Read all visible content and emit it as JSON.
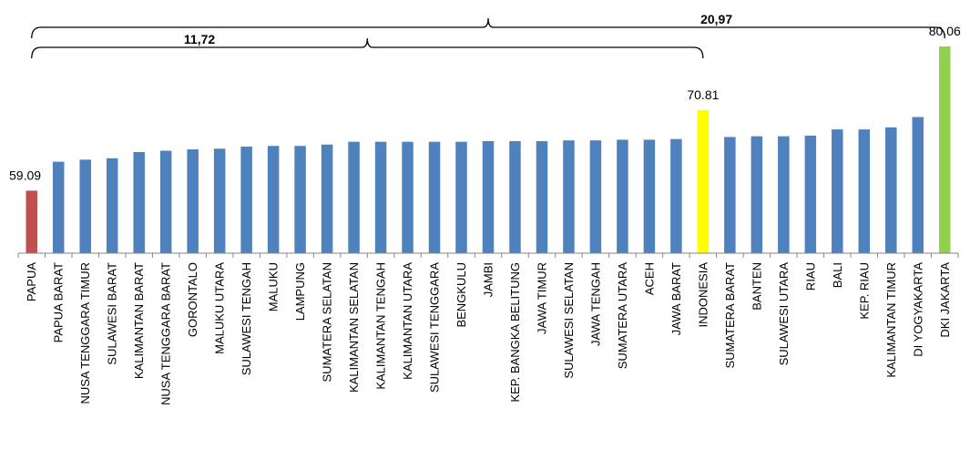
{
  "chart_data": {
    "type": "bar",
    "title": "",
    "xlabel": "",
    "ylabel": "",
    "ylim": [
      50,
      82
    ],
    "grid": false,
    "legend": "none",
    "categories": [
      "PAPUA",
      "PAPUA BARAT",
      "NUSA TENGGARA TIMUR",
      "SULAWESI BARAT",
      "KALIMANTAN BARAT",
      "NUSA TENGGARA BARAT",
      "GORONTALO",
      "MALUKU UTARA",
      "SULAWESI TENGAH",
      "MALUKU",
      "LAMPUNG",
      "SUMATERA SELATAN",
      "KALIMANTAN SELATAN",
      "KALIMANTAN TENGAH",
      "KALIMANTAN UTARA",
      "SULAWESI TENGGARA",
      "BENGKULU",
      "JAMBI",
      "KEP. BANGKA BELITUNG",
      "JAWA TIMUR",
      "SULAWESI SELATAN",
      "JAWA TENGAH",
      "SUMATERA UTARA",
      "ACEH",
      "JAWA BARAT",
      "INDONESIA",
      "SUMATERA BARAT",
      "BANTEN",
      "SULAWESI UTARA",
      "RIAU",
      "BALI",
      "KEP. RIAU",
      "KALIMANTAN TIMUR",
      "DI YOGYAKARTA",
      "DKI JAKARTA"
    ],
    "values": [
      59.09,
      63.3,
      63.6,
      63.8,
      64.7,
      64.9,
      65.1,
      65.2,
      65.5,
      65.6,
      65.6,
      65.8,
      66.2,
      66.2,
      66.2,
      66.2,
      66.2,
      66.3,
      66.3,
      66.3,
      66.4,
      66.4,
      66.5,
      66.5,
      66.6,
      70.81,
      66.9,
      67.0,
      67.0,
      67.1,
      68.0,
      68.0,
      68.3,
      69.8,
      80.06
    ],
    "bar_colors": [
      "#c0504d",
      "#4f81bd",
      "#4f81bd",
      "#4f81bd",
      "#4f81bd",
      "#4f81bd",
      "#4f81bd",
      "#4f81bd",
      "#4f81bd",
      "#4f81bd",
      "#4f81bd",
      "#4f81bd",
      "#4f81bd",
      "#4f81bd",
      "#4f81bd",
      "#4f81bd",
      "#4f81bd",
      "#4f81bd",
      "#4f81bd",
      "#4f81bd",
      "#4f81bd",
      "#4f81bd",
      "#4f81bd",
      "#4f81bd",
      "#4f81bd",
      "#ffff00",
      "#4f81bd",
      "#4f81bd",
      "#4f81bd",
      "#4f81bd",
      "#4f81bd",
      "#4f81bd",
      "#4f81bd",
      "#4f81bd",
      "#92d050"
    ],
    "data_labels": [
      {
        "index": 0,
        "text": "59.09"
      },
      {
        "index": 25,
        "text": "70.81"
      },
      {
        "index": 34,
        "text": "80.06"
      }
    ],
    "brackets": [
      {
        "from_index": 0,
        "to_index": 25,
        "text": "11,72"
      },
      {
        "from_index": 0,
        "to_index": 34,
        "text": "20,97"
      }
    ]
  }
}
